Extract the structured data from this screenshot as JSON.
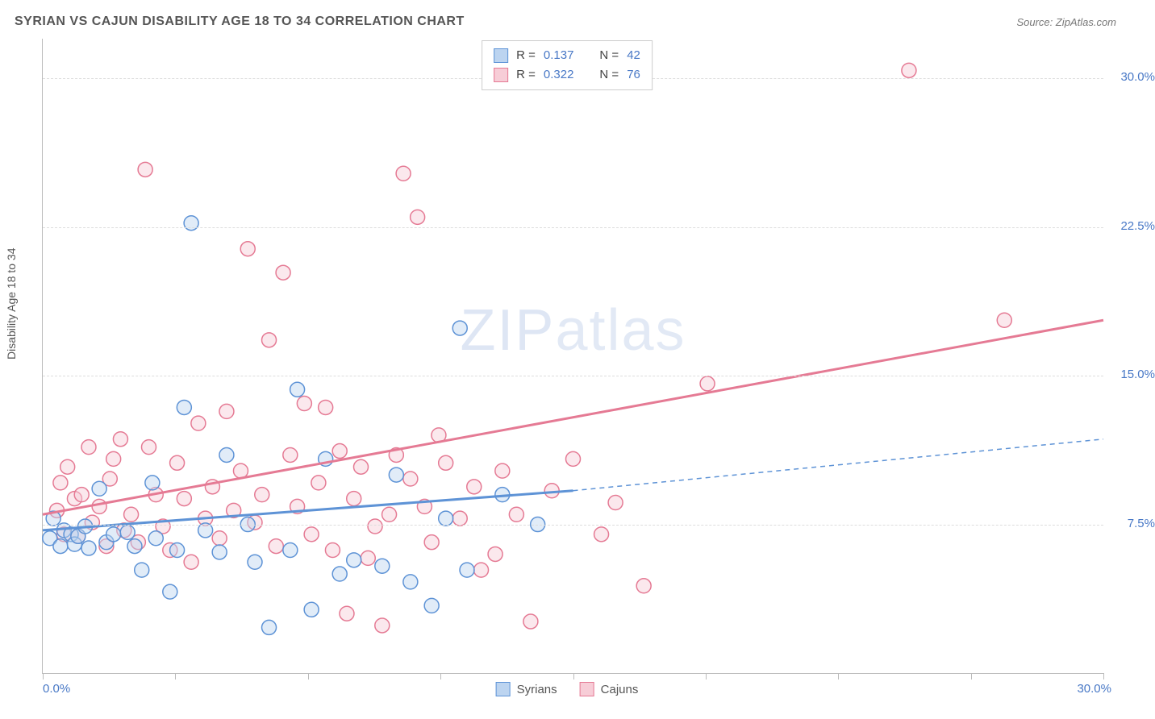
{
  "title": "SYRIAN VS CAJUN DISABILITY AGE 18 TO 34 CORRELATION CHART",
  "source": "Source: ZipAtlas.com",
  "y_axis_label": "Disability Age 18 to 34",
  "watermark_a": "ZIP",
  "watermark_b": "atlas",
  "chart": {
    "type": "scatter",
    "xlim": [
      0,
      30
    ],
    "ylim": [
      0,
      32
    ],
    "x_min_label": "0.0%",
    "x_max_label": "30.0%",
    "y_ticks": [
      7.5,
      15.0,
      22.5,
      30.0
    ],
    "y_tick_labels": [
      "7.5%",
      "15.0%",
      "22.5%",
      "30.0%"
    ],
    "x_tick_positions": [
      0,
      3.75,
      7.5,
      11.25,
      15,
      18.75,
      22.5,
      26.25,
      30
    ],
    "background_color": "#ffffff",
    "grid_color": "#dddddd",
    "axis_color": "#bbbbbb",
    "axis_value_color": "#4878c6",
    "title_color": "#555555",
    "title_fontsize": 16,
    "axis_label_fontsize": 14,
    "tick_fontsize": 15,
    "marker_radius": 9,
    "marker_stroke_width": 1.5,
    "marker_fill_opacity": 0.45,
    "trend_line_width": 3,
    "trend_dash": "6,5"
  },
  "series": {
    "syrians": {
      "label": "Syrians",
      "color_fill": "#bcd4f0",
      "color_stroke": "#5e93d6",
      "R": "0.137",
      "N": "42",
      "trend_solid": {
        "x1": 0,
        "y1": 7.2,
        "x2": 15,
        "y2": 9.2
      },
      "trend_dash": {
        "x1": 15,
        "y1": 9.2,
        "x2": 30,
        "y2": 11.8
      },
      "points": [
        [
          0.2,
          6.8
        ],
        [
          0.3,
          7.8
        ],
        [
          0.5,
          6.4
        ],
        [
          0.6,
          7.2
        ],
        [
          0.8,
          7.0
        ],
        [
          0.9,
          6.5
        ],
        [
          1.0,
          6.9
        ],
        [
          1.2,
          7.4
        ],
        [
          1.3,
          6.3
        ],
        [
          1.6,
          9.3
        ],
        [
          1.8,
          6.6
        ],
        [
          2.0,
          7.0
        ],
        [
          2.4,
          7.1
        ],
        [
          2.6,
          6.4
        ],
        [
          2.8,
          5.2
        ],
        [
          3.1,
          9.6
        ],
        [
          3.2,
          6.8
        ],
        [
          3.6,
          4.1
        ],
        [
          3.8,
          6.2
        ],
        [
          4.0,
          13.4
        ],
        [
          4.2,
          22.7
        ],
        [
          4.6,
          7.2
        ],
        [
          5.0,
          6.1
        ],
        [
          5.2,
          11.0
        ],
        [
          5.8,
          7.5
        ],
        [
          6.0,
          5.6
        ],
        [
          6.4,
          2.3
        ],
        [
          7.0,
          6.2
        ],
        [
          7.2,
          14.3
        ],
        [
          7.6,
          3.2
        ],
        [
          8.0,
          10.8
        ],
        [
          8.4,
          5.0
        ],
        [
          8.8,
          5.7
        ],
        [
          9.6,
          5.4
        ],
        [
          10.0,
          10.0
        ],
        [
          10.4,
          4.6
        ],
        [
          11.0,
          3.4
        ],
        [
          11.4,
          7.8
        ],
        [
          11.8,
          17.4
        ],
        [
          12.0,
          5.2
        ],
        [
          13.0,
          9.0
        ],
        [
          14.0,
          7.5
        ]
      ]
    },
    "cajuns": {
      "label": "Cajuns",
      "color_fill": "#f7cdd7",
      "color_stroke": "#e57a94",
      "R": "0.322",
      "N": "76",
      "trend_solid": {
        "x1": 0,
        "y1": 8.0,
        "x2": 30,
        "y2": 17.8
      },
      "points": [
        [
          0.4,
          8.2
        ],
        [
          0.5,
          9.6
        ],
        [
          0.6,
          7.0
        ],
        [
          0.7,
          10.4
        ],
        [
          0.9,
          8.8
        ],
        [
          1.0,
          6.9
        ],
        [
          1.1,
          9.0
        ],
        [
          1.3,
          11.4
        ],
        [
          1.4,
          7.6
        ],
        [
          1.6,
          8.4
        ],
        [
          1.8,
          6.4
        ],
        [
          1.9,
          9.8
        ],
        [
          2.0,
          10.8
        ],
        [
          2.2,
          11.8
        ],
        [
          2.3,
          7.2
        ],
        [
          2.5,
          8.0
        ],
        [
          2.7,
          6.6
        ],
        [
          2.9,
          25.4
        ],
        [
          3.0,
          11.4
        ],
        [
          3.2,
          9.0
        ],
        [
          3.4,
          7.4
        ],
        [
          3.6,
          6.2
        ],
        [
          3.8,
          10.6
        ],
        [
          4.0,
          8.8
        ],
        [
          4.2,
          5.6
        ],
        [
          4.4,
          12.6
        ],
        [
          4.6,
          7.8
        ],
        [
          4.8,
          9.4
        ],
        [
          5.0,
          6.8
        ],
        [
          5.2,
          13.2
        ],
        [
          5.4,
          8.2
        ],
        [
          5.6,
          10.2
        ],
        [
          5.8,
          21.4
        ],
        [
          6.0,
          7.6
        ],
        [
          6.2,
          9.0
        ],
        [
          6.4,
          16.8
        ],
        [
          6.6,
          6.4
        ],
        [
          6.8,
          20.2
        ],
        [
          7.0,
          11.0
        ],
        [
          7.2,
          8.4
        ],
        [
          7.4,
          13.6
        ],
        [
          7.6,
          7.0
        ],
        [
          7.8,
          9.6
        ],
        [
          8.0,
          13.4
        ],
        [
          8.2,
          6.2
        ],
        [
          8.4,
          11.2
        ],
        [
          8.6,
          3.0
        ],
        [
          8.8,
          8.8
        ],
        [
          9.0,
          10.4
        ],
        [
          9.2,
          5.8
        ],
        [
          9.4,
          7.4
        ],
        [
          9.6,
          2.4
        ],
        [
          10.0,
          11.0
        ],
        [
          10.2,
          25.2
        ],
        [
          10.4,
          9.8
        ],
        [
          10.6,
          23.0
        ],
        [
          10.8,
          8.4
        ],
        [
          11.0,
          6.6
        ],
        [
          11.4,
          10.6
        ],
        [
          11.8,
          7.8
        ],
        [
          12.2,
          9.4
        ],
        [
          12.4,
          5.2
        ],
        [
          13.0,
          10.2
        ],
        [
          13.4,
          8.0
        ],
        [
          13.8,
          2.6
        ],
        [
          14.4,
          9.2
        ],
        [
          15.0,
          10.8
        ],
        [
          15.8,
          7.0
        ],
        [
          17.0,
          4.4
        ],
        [
          18.8,
          14.6
        ],
        [
          24.5,
          30.4
        ],
        [
          27.2,
          17.8
        ],
        [
          16.2,
          8.6
        ],
        [
          12.8,
          6.0
        ],
        [
          11.2,
          12.0
        ],
        [
          9.8,
          8.0
        ]
      ]
    }
  },
  "legend_top_labels": {
    "R": "R  =",
    "N": "N  ="
  }
}
